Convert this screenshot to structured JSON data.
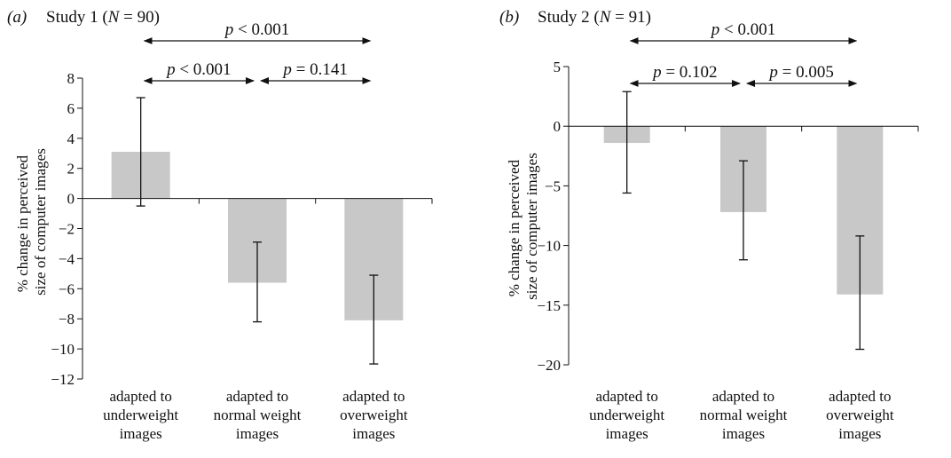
{
  "chart_data": [
    {
      "type": "bar",
      "panel_label": "(a)",
      "title": "Study 1 (N = 90)",
      "title_parts": [
        "Study 1 (",
        "N",
        " = 90)"
      ],
      "ylabel": [
        "% change in perceived",
        "size of computer images"
      ],
      "ylim": [
        -12,
        8
      ],
      "yticks": [
        8,
        6,
        4,
        2,
        0,
        -2,
        -4,
        -6,
        -8,
        -10,
        -12
      ],
      "ytick_labels": [
        "8",
        "6",
        "4",
        "2",
        "0",
        "−2",
        "−4",
        "−6",
        "−8",
        "−10",
        "−12"
      ],
      "categories": [
        [
          "adapted to",
          "underweight",
          "images"
        ],
        [
          "adapted to",
          "normal weight",
          "images"
        ],
        [
          "adapted to",
          "overweight",
          "images"
        ]
      ],
      "values": [
        3.1,
        -5.6,
        -8.1
      ],
      "error_low": [
        -0.5,
        -8.2,
        -11.0
      ],
      "error_high": [
        6.7,
        -2.9,
        -5.1
      ],
      "bar_color": "#c8c8c8",
      "grid": false,
      "annotations": [
        {
          "from": 0,
          "to": 1,
          "level": 1,
          "label": "p < 0.001"
        },
        {
          "from": 1,
          "to": 2,
          "level": 1,
          "label": "p = 0.141"
        },
        {
          "from": 0,
          "to": 2,
          "level": 2,
          "label": "p < 0.001"
        }
      ]
    },
    {
      "type": "bar",
      "panel_label": "(b)",
      "title": "Study 2 (N = 91)",
      "title_parts": [
        "Study 2 (",
        "N",
        " = 91)"
      ],
      "ylabel": [
        "% change in perceived",
        "size of computer images"
      ],
      "ylim": [
        -20,
        5
      ],
      "yticks": [
        5,
        0,
        -5,
        -10,
        -15,
        -20
      ],
      "ytick_labels": [
        "5",
        "0",
        "−5",
        "−10",
        "−15",
        "−20"
      ],
      "categories": [
        [
          "adapted to",
          "underweight",
          "images"
        ],
        [
          "adapted to",
          "normal weight",
          "images"
        ],
        [
          "adapted to",
          "overweight",
          "images"
        ]
      ],
      "values": [
        -1.4,
        -7.2,
        -14.1
      ],
      "error_low": [
        -5.6,
        -11.2,
        -18.7
      ],
      "error_high": [
        2.9,
        -2.9,
        -9.2
      ],
      "bar_color": "#c8c8c8",
      "grid": false,
      "annotations": [
        {
          "from": 0,
          "to": 1,
          "level": 1,
          "label": "p = 0.102"
        },
        {
          "from": 1,
          "to": 2,
          "level": 1,
          "label": "p = 0.005"
        },
        {
          "from": 0,
          "to": 2,
          "level": 2,
          "label": "p < 0.001"
        }
      ]
    }
  ]
}
